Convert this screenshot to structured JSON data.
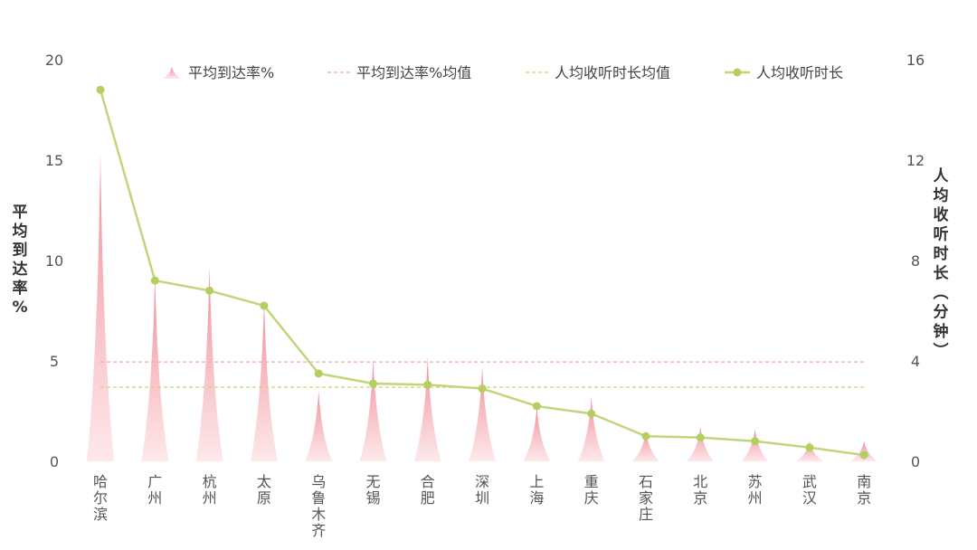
{
  "chart_data": {
    "type": "bar-line",
    "categories": [
      "哈尔滨",
      "广州",
      "杭州",
      "太原",
      "乌鲁木齐",
      "无锡",
      "合肥",
      "深圳",
      "上海",
      "重庆",
      "石家庄",
      "北京",
      "苏州",
      "武汉",
      "南京"
    ],
    "series": [
      {
        "name": "平均到达率%",
        "type": "spike",
        "axis": "left",
        "values": [
          15.3,
          9.3,
          9.7,
          8.0,
          3.5,
          5.1,
          5.2,
          4.7,
          2.7,
          3.2,
          1.5,
          1.7,
          1.6,
          1.0,
          1.0
        ]
      },
      {
        "name": "人均收听时长",
        "type": "line",
        "axis": "right",
        "values": [
          14.8,
          7.2,
          6.8,
          6.2,
          3.5,
          3.1,
          3.05,
          2.9,
          2.2,
          1.9,
          1.0,
          0.95,
          0.8,
          0.55,
          0.25
        ]
      }
    ],
    "reference_lines": [
      {
        "name": "平均到达率%均值",
        "axis": "left",
        "value": 4.95,
        "color": "#f4a6ae"
      },
      {
        "name": "人均收听时长均值",
        "axis": "right",
        "value": 2.95,
        "color": "#c5d96b"
      }
    ],
    "y_left": {
      "label": "平均到达率%",
      "ticks": [
        "0",
        "5",
        "10",
        "15",
        "20"
      ],
      "range": [
        0,
        20
      ]
    },
    "y_right": {
      "label": "人均收听时长（分钟）",
      "ticks": [
        "0",
        "4",
        "8",
        "12",
        "16"
      ],
      "range": [
        0,
        16
      ]
    },
    "legend": {
      "placement": "top",
      "items": [
        "平均到达率%",
        "平均到达率%均值",
        "人均收听时长均值",
        "人均收听时长"
      ]
    },
    "colors": {
      "spike": "#f2a0a8",
      "line": "#bfd77a",
      "marker": "#b3cf5f"
    },
    "grid": false
  }
}
